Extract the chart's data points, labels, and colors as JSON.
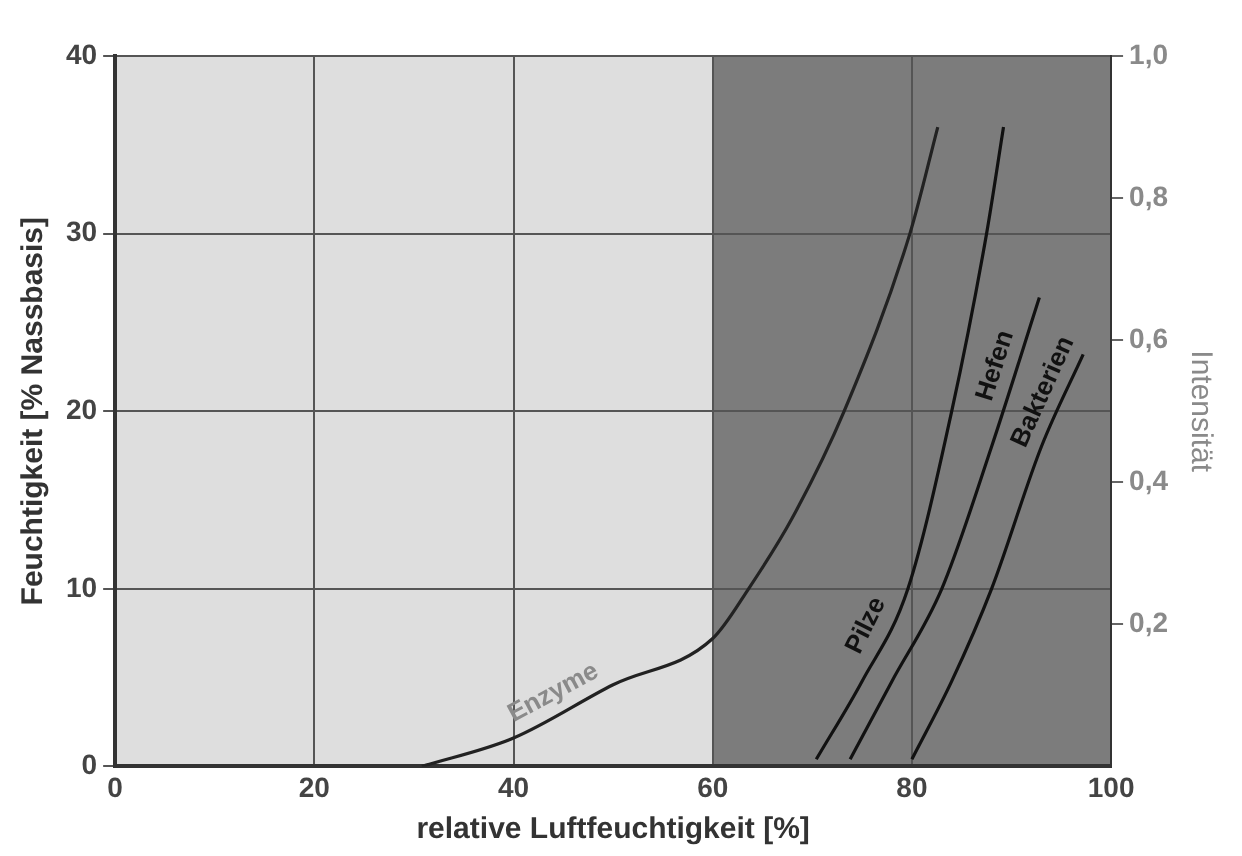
{
  "chart_data": {
    "type": "line",
    "xlabel": "relative Luftfeuchtigkeit [%]",
    "ylabel": "Feuchtigkeit [% Nassbasis]",
    "y2label": "Intensität",
    "xlim": [
      0,
      100
    ],
    "xticks": [
      0,
      20,
      40,
      60,
      80,
      100
    ],
    "ylim": [
      0,
      40
    ],
    "yticks": [
      0,
      10,
      20,
      30,
      40
    ],
    "y2lim": [
      0,
      1
    ],
    "y2ticks": [
      {
        "value": 0.2,
        "label": "0,2"
      },
      {
        "value": 0.4,
        "label": "0,4"
      },
      {
        "value": 0.6,
        "label": "0,6"
      },
      {
        "value": 0.8,
        "label": "0,8"
      },
      {
        "value": 1,
        "label": "1,0"
      }
    ],
    "grid": true,
    "marker": "none",
    "line_style": "solid",
    "bands": [
      {
        "axis": "x",
        "from": 0,
        "to": 60,
        "color": "#dedede"
      },
      {
        "axis": "x",
        "from": 60,
        "to": 100,
        "color": "#7c7c7c"
      }
    ],
    "series": [
      {
        "name": "Enzyme",
        "color": "#222222",
        "axis": "y2",
        "x": [
          30.8,
          40,
          50,
          60,
          63.6,
          68,
          73.2,
          79.8,
          82.6
        ],
        "values": [
          0,
          0.04,
          0.115,
          0.18,
          0.25,
          0.35,
          0.5,
          0.75,
          0.9
        ]
      },
      {
        "name": "Pilze",
        "color": "#111111",
        "axis": "y2",
        "x": [
          70.4,
          75,
          79.6,
          84,
          87.5,
          89.2
        ],
        "values": [
          0.01,
          0.12,
          0.25,
          0.5,
          0.75,
          0.9
        ]
      },
      {
        "name": "Hefen",
        "color": "#111111",
        "axis": "y2",
        "x": [
          73.8,
          78,
          83,
          88,
          92.8
        ],
        "values": [
          0.01,
          0.12,
          0.25,
          0.45,
          0.66
        ]
      },
      {
        "name": "Bakterien",
        "color": "#111111",
        "axis": "y2",
        "x": [
          80,
          84,
          88,
          93,
          97.2
        ],
        "values": [
          0.01,
          0.12,
          0.25,
          0.45,
          0.58
        ]
      }
    ]
  }
}
